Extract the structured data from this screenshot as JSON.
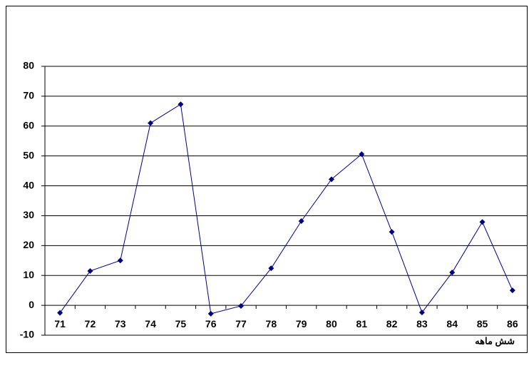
{
  "chart_data": {
    "type": "line",
    "x_label": "شش ماهه",
    "categories": [
      "71",
      "72",
      "73",
      "74",
      "75",
      "76",
      "77",
      "78",
      "79",
      "80",
      "81",
      "82",
      "83",
      "84",
      "85",
      "86"
    ],
    "series": [
      {
        "color": "#000080",
        "values": [
          -2.5,
          11.5,
          15,
          61,
          67.3,
          -2.8,
          -0.2,
          12.4,
          28.2,
          42.2,
          50.6,
          24.6,
          -2.4,
          11,
          27.9,
          5
        ]
      }
    ],
    "ylim": [
      -10,
      80
    ],
    "yticks": [
      -10,
      0,
      10,
      20,
      30,
      40,
      50,
      60,
      70,
      80
    ],
    "grid": true
  }
}
